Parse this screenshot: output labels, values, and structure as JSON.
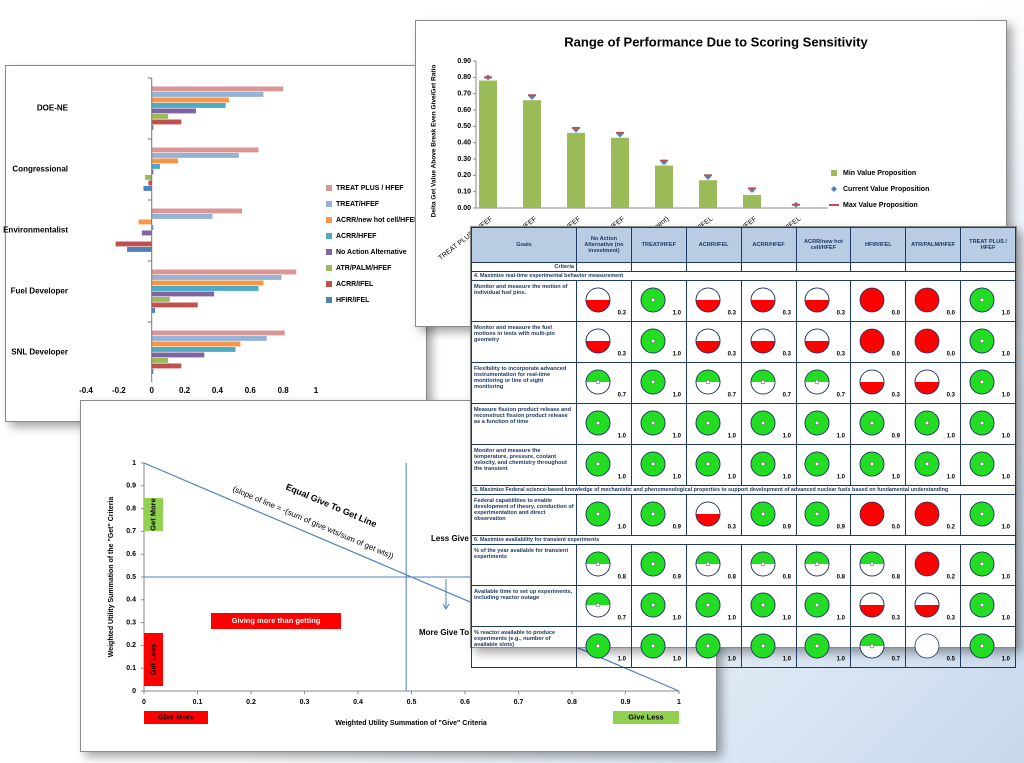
{
  "chart_data": [
    {
      "type": "hbar",
      "categories": [
        "DOE-NE",
        "Congressional",
        "Environmentalist",
        "Fuel Developer",
        "SNL Developer"
      ],
      "series": [
        {
          "name": "TREAT PLUS / HFEF",
          "color": "#d99694",
          "values": [
            0.8,
            0.65,
            0.55,
            0.88,
            0.81
          ]
        },
        {
          "name": "TREAT/HFEF",
          "color": "#95b3d7",
          "values": [
            0.68,
            0.53,
            0.37,
            0.79,
            0.7
          ]
        },
        {
          "name": "ACRR/new hot cell/HFEF",
          "color": "#f79646",
          "values": [
            0.47,
            0.16,
            -0.08,
            0.68,
            0.54
          ]
        },
        {
          "name": "ACRR/HFEF",
          "color": "#4bacc6",
          "values": [
            0.45,
            0.05,
            0.01,
            0.65,
            0.51
          ]
        },
        {
          "name": "No Action Alternative",
          "color": "#8064a2",
          "values": [
            0.27,
            0.01,
            -0.06,
            0.38,
            0.32
          ]
        },
        {
          "name": "ATR/PALM/HFEF",
          "color": "#9bbb59",
          "values": [
            0.1,
            -0.04,
            0.0,
            0.11,
            0.1
          ]
        },
        {
          "name": "ACRR/IFEL",
          "color": "#c0504d",
          "values": [
            0.18,
            -0.02,
            -0.22,
            0.28,
            0.18
          ]
        },
        {
          "name": "HFIR/IFEL",
          "color": "#4f81bd",
          "values": [
            0.01,
            -0.05,
            -0.15,
            0.02,
            0.01
          ]
        }
      ],
      "xlim": [
        -0.4,
        1
      ],
      "xticks": [
        -0.4,
        -0.2,
        0,
        0.2,
        0.4,
        0.6,
        0.8,
        1
      ],
      "legend": "right"
    },
    {
      "type": "bar",
      "title": "Range of Performance Due to Scoring Sensitivity",
      "y_label": "Delta Get Value Above Break Even Give/Get Ratio",
      "categories": [
        "TREAT PLUS / HFEF",
        "TREAT/HFEF",
        "ACRR/new hot cell/HFEF",
        "ACRR/HFEF",
        "No Action Alternative (no investment)",
        "ACRR/IFEL",
        "ATR/PALM/HFEF",
        "HFIR/IFEL"
      ],
      "series": [
        {
          "name": "Min Value Proposition",
          "color": "#9bbb59",
          "mark": "bar",
          "values": [
            0.78,
            0.66,
            0.46,
            0.43,
            0.26,
            0.17,
            0.08,
            0.0
          ]
        },
        {
          "name": "Current Value Proposition",
          "color": "#4f81bd",
          "mark": "diamond",
          "values": [
            0.8,
            0.68,
            0.48,
            0.45,
            0.28,
            0.19,
            0.11,
            0.02
          ]
        },
        {
          "name": "Max Value Proposition",
          "color": "#c0504d",
          "mark": "dash",
          "values": [
            0.8,
            0.69,
            0.49,
            0.46,
            0.29,
            0.2,
            0.12,
            0.02
          ]
        }
      ],
      "ylim": [
        0,
        0.9
      ],
      "yticks": [
        {
          "value": 0,
          "label": "0.00"
        },
        {
          "value": 0.1,
          "label": "0.10"
        },
        {
          "value": 0.2,
          "label": "0.20"
        },
        {
          "value": 0.3,
          "label": "0.30"
        },
        {
          "value": 0.4,
          "label": "0.40"
        },
        {
          "value": 0.5,
          "label": "0.50"
        },
        {
          "value": 0.6,
          "label": "0.60"
        },
        {
          "value": 0.7,
          "label": "0.70"
        },
        {
          "value": 0.8,
          "label": "0.80"
        },
        {
          "value": 0.9,
          "label": "0.90"
        }
      ],
      "legend": "right"
    },
    {
      "type": "line",
      "title": "Equal Give To Get Line",
      "subtitle": "(slope of line = -(sum of give wts/sum of get wts))",
      "x_label": "Weighted Utility Summation of \"Give\" Criteria",
      "y_label": "Weighted Utility Summation of the \"Get\" Criteria",
      "x": [
        0,
        1
      ],
      "series": [
        {
          "color": "#4f81bd",
          "values": [
            1,
            0
          ]
        }
      ],
      "reference_lines": {
        "x": 0.49,
        "y": 0.5,
        "color": "#4f81bd"
      },
      "xlim": [
        0,
        1
      ],
      "xticks": [
        0,
        0.1,
        0.2,
        0.3,
        0.4,
        0.5,
        0.6,
        0.7,
        0.8,
        0.9,
        1
      ],
      "ylim": [
        0,
        1
      ],
      "yticks": [
        0,
        0.1,
        0.2,
        0.3,
        0.4,
        0.5,
        0.6,
        0.7,
        0.8,
        0.9,
        1
      ],
      "annotations": [
        {
          "text": "Less Give T",
          "color": "#000000"
        },
        {
          "text": "More Give To",
          "color": "#000000"
        },
        {
          "text": "Giving more than getting",
          "color": "#ff0000"
        },
        {
          "text": "Get More",
          "color": "#92d050"
        },
        {
          "text": "Get Less",
          "color": "#ff0000"
        },
        {
          "text": "Give More",
          "color": "#ff0000"
        },
        {
          "text": "Give Less",
          "color": "#92d050"
        }
      ]
    }
  ],
  "table": {
    "columns": [
      "Goals",
      "No Action Alternative (no investment)",
      "TREAT/HFEF",
      "ACRR/IFEL",
      "ACRR/HFEF",
      "ACRR/new hot cell/HFEF",
      "HFIR/IFEL",
      "ATR/PALM/HFEF",
      "TREAT PLUS / HFEF"
    ],
    "criteria_label": "Criteria",
    "sections": [
      {
        "title": "4. Maximize real-time experimental behavior measurement",
        "rows": [
          {
            "label": "Monitor and measure the motion of individual fuel pins.",
            "scores": [
              "0.3",
              "1.0",
              "0.3",
              "0.3",
              "0.3",
              "0.0",
              "0.0",
              "1.0"
            ]
          },
          {
            "label": "Monitor and measure the fuel motions in tests with multi-pin geometry",
            "scores": [
              "0.3",
              "1.0",
              "0.3",
              "0.3",
              "0.3",
              "0.0",
              "0.0",
              "1.0"
            ]
          },
          {
            "label": "Flexibility to incorporate advanced instrumentation for real-time monitoring or line of sight monitoring",
            "scores": [
              "0.7",
              "1.0",
              "0.7",
              "0.7",
              "0.7",
              "0.3",
              "0.3",
              "1.0"
            ]
          },
          {
            "label": "Measure fission product release and reconstruct fission product release as a function of time",
            "scores": [
              "1.0",
              "1.0",
              "1.0",
              "1.0",
              "1.0",
              "0.9",
              "1.0",
              "1.0"
            ]
          },
          {
            "label": "Monitor and measure the temperature, pressure, coolant velocity, and chemistry throughout the transient",
            "scores": [
              "1.0",
              "1.0",
              "1.0",
              "1.0",
              "1.0",
              "1.0",
              "1.0",
              "1.0"
            ]
          }
        ]
      },
      {
        "title": "5. Maximize Federal science-based knowledge of mechanistic and phenomenological properties to support development of advanced nuclear fuels based on fundamental understanding",
        "rows": [
          {
            "label": "Federal capabilities to enable development of theory, conduction of experimentation and direct observation",
            "scores": [
              "1.0",
              "0.9",
              "0.3",
              "0.9",
              "0.9",
              "0.0",
              "0.2",
              "1.0"
            ]
          }
        ]
      },
      {
        "title": "6. Maximize availability for transient experiments",
        "rows": [
          {
            "label": "% of the year available for transient experiments",
            "scores": [
              "0.8",
              "0.9",
              "0.8",
              "0.8",
              "0.8",
              "0.8",
              "0.2",
              "1.0"
            ]
          },
          {
            "label": "Available time to set up experiments, including reactor outage",
            "scores": [
              "0.7",
              "1.0",
              "1.0",
              "1.0",
              "1.0",
              "0.3",
              "0.3",
              "1.0"
            ]
          },
          {
            "label": "% reactor available to produce experiments (e.g., number of available slots)",
            "scores": [
              "1.0",
              "1.0",
              "1.0",
              "1.0",
              "1.0",
              "0.7",
              "0.5",
              "1.0"
            ]
          }
        ]
      }
    ]
  }
}
